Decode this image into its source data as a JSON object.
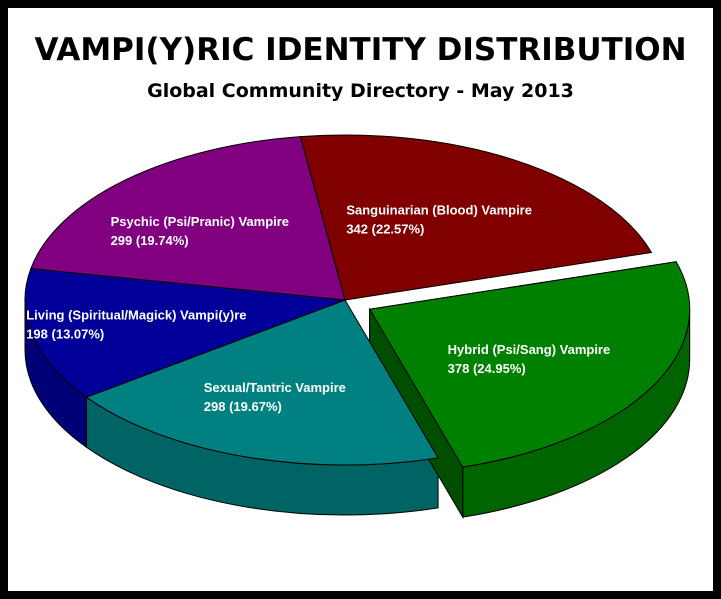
{
  "chart_data": {
    "type": "pie",
    "title": "VAMPI(Y)RIC IDENTITY DISTRIBUTION",
    "subtitle": "Global Community Directory - May 2013",
    "slices": [
      {
        "label": "Sanguinarian (Blood) Vampire",
        "value": 342,
        "value_text": "342 (22.57%)",
        "color": "#800000",
        "exploded": false
      },
      {
        "label": "Hybrid (Psi/Sang) Vampire",
        "value": 378,
        "value_text": "378 (24.95%)",
        "color": "#008000",
        "exploded": true
      },
      {
        "label": "Sexual/Tantric Vampire",
        "value": 298,
        "value_text": "298 (19.67%)",
        "color": "#008080",
        "exploded": false
      },
      {
        "label": "Living (Spiritual/Magick) Vampi(y)re",
        "value": 198,
        "value_text": "198 (13.07%)",
        "color": "#000099",
        "exploded": false
      },
      {
        "label": "Psychic (Psi/Pranic) Vampire",
        "value": 299,
        "value_text": "299 (19.74%)",
        "color": "#800080",
        "exploded": false
      }
    ]
  }
}
